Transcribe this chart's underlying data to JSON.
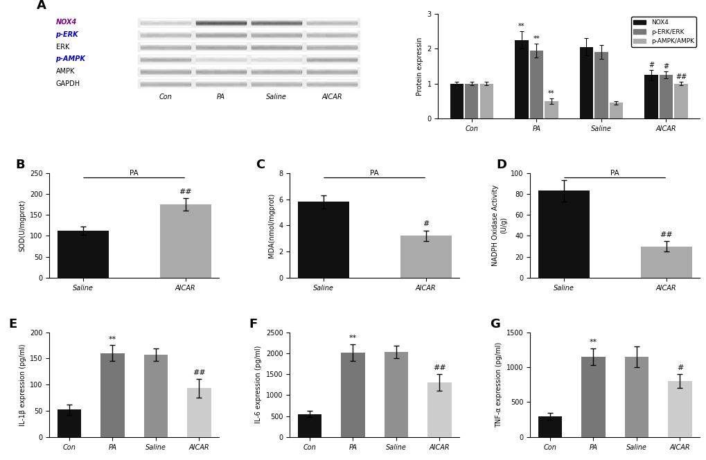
{
  "panel_A_bar": {
    "categories": [
      "Con",
      "PA",
      "Saline",
      "AICAR"
    ],
    "NOX4": [
      1.0,
      2.25,
      2.05,
      1.25
    ],
    "NOX4_err": [
      0.05,
      0.25,
      0.25,
      0.15
    ],
    "pERK": [
      1.0,
      1.95,
      1.9,
      1.25
    ],
    "pERK_err": [
      0.05,
      0.2,
      0.2,
      0.1
    ],
    "pAMPK": [
      1.0,
      0.5,
      0.45,
      1.0
    ],
    "pAMPK_err": [
      0.05,
      0.08,
      0.05,
      0.05
    ],
    "ylabel": "Protein expressin",
    "ylim": [
      0,
      3
    ],
    "yticks": [
      0,
      1,
      2,
      3
    ],
    "legend_labels": [
      "NOX4",
      "p-ERK/ERK",
      "p-AMPK/AMPK"
    ],
    "bar_colors": [
      "#111111",
      "#777777",
      "#aaaaaa"
    ]
  },
  "panel_B": {
    "categories": [
      "Saline",
      "AICAR"
    ],
    "values": [
      113,
      175
    ],
    "errors": [
      10,
      15
    ],
    "ylabel": "SOD(U/mgprot)",
    "ylim": [
      0,
      250
    ],
    "yticks": [
      0,
      50,
      100,
      150,
      200,
      250
    ],
    "bar_colors": [
      "#111111",
      "#aaaaaa"
    ],
    "annotation": "##",
    "bracket_label": "PA"
  },
  "panel_C": {
    "categories": [
      "Saline",
      "AICAR"
    ],
    "values": [
      5.8,
      3.2
    ],
    "errors": [
      0.5,
      0.4
    ],
    "ylabel": "MDA(nmol/mgprot)",
    "ylim": [
      0,
      8
    ],
    "yticks": [
      0,
      2,
      4,
      6,
      8
    ],
    "bar_colors": [
      "#111111",
      "#aaaaaa"
    ],
    "annotation": "#",
    "bracket_label": "PA"
  },
  "panel_D": {
    "categories": [
      "Saline",
      "AICAR"
    ],
    "values": [
      83,
      30
    ],
    "errors": [
      10,
      5
    ],
    "ylabel": "NADPH Oxidase Activity\n(U/g)",
    "ylim": [
      0,
      100
    ],
    "yticks": [
      0,
      20,
      40,
      60,
      80,
      100
    ],
    "bar_colors": [
      "#111111",
      "#aaaaaa"
    ],
    "annotation": "##",
    "bracket_label": "PA"
  },
  "panel_E": {
    "categories": [
      "Con",
      "PA",
      "Saline",
      "AICAR"
    ],
    "values": [
      52,
      160,
      157,
      93
    ],
    "errors": [
      10,
      15,
      12,
      18
    ],
    "ylabel": "IL-1β expression (pg/ml)",
    "ylim": [
      0,
      200
    ],
    "yticks": [
      0,
      50,
      100,
      150,
      200
    ],
    "bar_colors": [
      "#111111",
      "#777777",
      "#909090",
      "#cccccc"
    ],
    "annotations": {
      "PA": "**",
      "AICAR": "##"
    }
  },
  "panel_F": {
    "categories": [
      "Con",
      "PA",
      "Saline",
      "AICAR"
    ],
    "values": [
      550,
      2020,
      2030,
      1300
    ],
    "errors": [
      80,
      200,
      150,
      200
    ],
    "ylabel": "IL-6 expression (pg/ml)",
    "ylim": [
      0,
      2500
    ],
    "yticks": [
      0,
      500,
      1000,
      1500,
      2000,
      2500
    ],
    "bar_colors": [
      "#111111",
      "#777777",
      "#909090",
      "#cccccc"
    ],
    "annotations": {
      "PA": "**",
      "AICAR": "##"
    }
  },
  "panel_G": {
    "categories": [
      "Con",
      "PA",
      "Saline",
      "AICAR"
    ],
    "values": [
      300,
      1150,
      1150,
      800
    ],
    "errors": [
      50,
      120,
      150,
      100
    ],
    "ylabel": "TNF-α expression (pg/ml)",
    "ylim": [
      0,
      1500
    ],
    "yticks": [
      0,
      500,
      1000,
      1500
    ],
    "bar_colors": [
      "#111111",
      "#777777",
      "#909090",
      "#cccccc"
    ],
    "annotations": {
      "PA": "**",
      "AICAR": "#"
    }
  },
  "wb_labels": [
    "NOX4",
    "p-ERK",
    "ERK",
    "p-AMPK",
    "AMPK",
    "GAPDH"
  ],
  "wb_label_colors": [
    "#800080",
    "#0000cc",
    "#000000",
    "#0000cc",
    "#000000",
    "#000000"
  ],
  "wb_lane_labels": [
    "Con",
    "PA",
    "Saline",
    "AICAR"
  ],
  "wb_intensities": {
    "NOX4": [
      0.25,
      0.92,
      0.8,
      0.38
    ],
    "p-ERK": [
      0.38,
      0.55,
      0.5,
      0.42
    ],
    "ERK": [
      0.45,
      0.52,
      0.55,
      0.48
    ],
    "p-AMPK": [
      0.45,
      0.22,
      0.2,
      0.5
    ],
    "AMPK": [
      0.5,
      0.52,
      0.5,
      0.5
    ],
    "GAPDH": [
      0.45,
      0.42,
      0.44,
      0.43
    ]
  },
  "background_color": "#ffffff"
}
